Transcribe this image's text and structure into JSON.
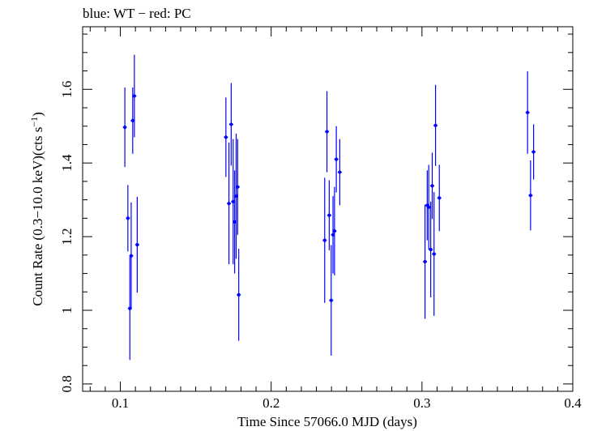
{
  "chart_data": {
    "type": "scatter",
    "title": "blue: WT − red: PC",
    "xlabel": "Time Since 57066.0 MJD (days)",
    "ylabel_main": "Count Rate (0.3−10.0 keV)(cts s",
    "ylabel_sup": "−1",
    "ylabel_end": ")",
    "xlim": [
      0.075,
      0.4
    ],
    "ylim": [
      0.78,
      1.77
    ],
    "x_ticks": [
      {
        "value": 0.1,
        "label": "0.1"
      },
      {
        "value": 0.2,
        "label": "0.2"
      },
      {
        "value": 0.3,
        "label": "0.3"
      },
      {
        "value": 0.4,
        "label": "0.4"
      }
    ],
    "y_ticks": [
      {
        "value": 0.8,
        "label": "0.8"
      },
      {
        "value": 1.0,
        "label": "1"
      },
      {
        "value": 1.2,
        "label": "1.2"
      },
      {
        "value": 1.4,
        "label": "1.4"
      },
      {
        "value": 1.6,
        "label": "1.6"
      }
    ],
    "series": [
      {
        "name": "WT",
        "color": "#0000ff",
        "points": [
          {
            "x": 0.103,
            "y": 1.497,
            "err": 0.108
          },
          {
            "x": 0.105,
            "y": 1.25,
            "err": 0.09
          },
          {
            "x": 0.1063,
            "y": 1.005,
            "err": 0.14
          },
          {
            "x": 0.1072,
            "y": 1.148,
            "err": 0.145
          },
          {
            "x": 0.1082,
            "y": 1.515,
            "err": 0.09
          },
          {
            "x": 0.1093,
            "y": 1.582,
            "err": 0.112
          },
          {
            "x": 0.1112,
            "y": 1.178,
            "err": 0.13
          },
          {
            "x": 0.17,
            "y": 1.47,
            "err": 0.108
          },
          {
            "x": 0.172,
            "y": 1.29,
            "err": 0.165
          },
          {
            "x": 0.1735,
            "y": 1.505,
            "err": 0.112
          },
          {
            "x": 0.1748,
            "y": 1.295,
            "err": 0.17
          },
          {
            "x": 0.1758,
            "y": 1.24,
            "err": 0.14
          },
          {
            "x": 0.1768,
            "y": 1.31,
            "err": 0.17
          },
          {
            "x": 0.1778,
            "y": 1.335,
            "err": 0.13
          },
          {
            "x": 0.1785,
            "y": 1.042,
            "err": 0.125
          },
          {
            "x": 0.2355,
            "y": 1.19,
            "err": 0.17
          },
          {
            "x": 0.237,
            "y": 1.485,
            "err": 0.11
          },
          {
            "x": 0.2385,
            "y": 1.258,
            "err": 0.095
          },
          {
            "x": 0.2398,
            "y": 1.027,
            "err": 0.15
          },
          {
            "x": 0.241,
            "y": 1.205,
            "err": 0.105
          },
          {
            "x": 0.242,
            "y": 1.215,
            "err": 0.12
          },
          {
            "x": 0.2432,
            "y": 1.41,
            "err": 0.09
          },
          {
            "x": 0.2455,
            "y": 1.375,
            "err": 0.09
          },
          {
            "x": 0.302,
            "y": 1.132,
            "err": 0.155
          },
          {
            "x": 0.3035,
            "y": 1.285,
            "err": 0.095
          },
          {
            "x": 0.3045,
            "y": 1.28,
            "err": 0.115
          },
          {
            "x": 0.3058,
            "y": 1.165,
            "err": 0.13
          },
          {
            "x": 0.3068,
            "y": 1.338,
            "err": 0.09
          },
          {
            "x": 0.308,
            "y": 1.153,
            "err": 0.168
          },
          {
            "x": 0.309,
            "y": 1.502,
            "err": 0.11
          },
          {
            "x": 0.3115,
            "y": 1.305,
            "err": 0.09
          },
          {
            "x": 0.37,
            "y": 1.537,
            "err": 0.112
          },
          {
            "x": 0.372,
            "y": 1.312,
            "err": 0.095
          },
          {
            "x": 0.374,
            "y": 1.43,
            "err": 0.075
          }
        ]
      }
    ]
  }
}
